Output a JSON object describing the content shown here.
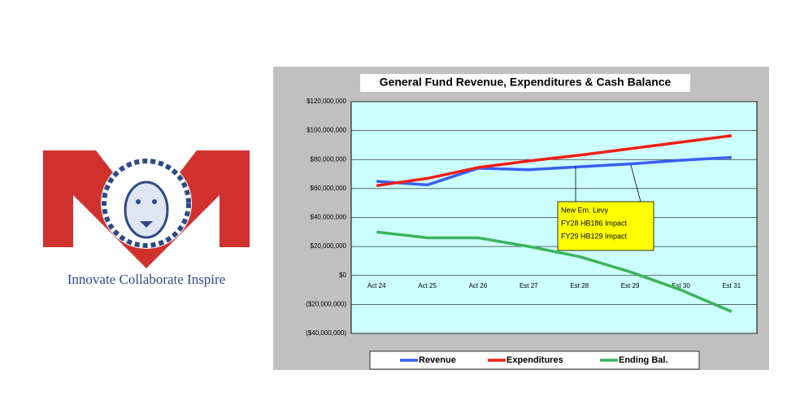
{
  "logo": {
    "tagline": "Innovate Collaborate Inspire"
  },
  "chart_data": {
    "type": "line",
    "title": "General Fund Revenue, Expenditures & Cash Balance",
    "categories": [
      "Act 24",
      "Act 25",
      "Act 26",
      "Est 27",
      "Est 28",
      "Est 29",
      "Est 30",
      "Est 31"
    ],
    "series": [
      {
        "name": "Revenue",
        "color": "#3a5ff0",
        "values": [
          65000000,
          62500000,
          74000000,
          73000000,
          75000000,
          77000000,
          79500000,
          81500000
        ]
      },
      {
        "name": "Expenditures",
        "color": "#f01e14",
        "values": [
          62000000,
          67000000,
          74500000,
          79000000,
          83000000,
          87500000,
          92000000,
          96500000
        ]
      },
      {
        "name": "Ending Bal.",
        "color": "#3cb45a",
        "values": [
          30000000,
          26000000,
          26000000,
          20000000,
          13000000,
          2500000,
          -10000000,
          -25000000
        ]
      }
    ],
    "ylim": [
      -40000000,
      120000000
    ],
    "yticks": [
      {
        "value": -40000000,
        "label": "($40,000,000)"
      },
      {
        "value": -20000000,
        "label": "($20,000,000)"
      },
      {
        "value": 0,
        "label": "$0"
      },
      {
        "value": 20000000,
        "label": "$20,000,000"
      },
      {
        "value": 40000000,
        "label": "$40,000,000"
      },
      {
        "value": 60000000,
        "label": "$60,000,000"
      },
      {
        "value": 80000000,
        "label": "$80,000,000"
      },
      {
        "value": 100000000,
        "label": "$100,000,000"
      },
      {
        "value": 120000000,
        "label": "$120,000,000"
      }
    ],
    "grid": true,
    "legend": "bottom",
    "annotation": [
      "New Em. Levy",
      "FY28 HB186 Impact",
      "FY29 HB129 Impact"
    ]
  }
}
